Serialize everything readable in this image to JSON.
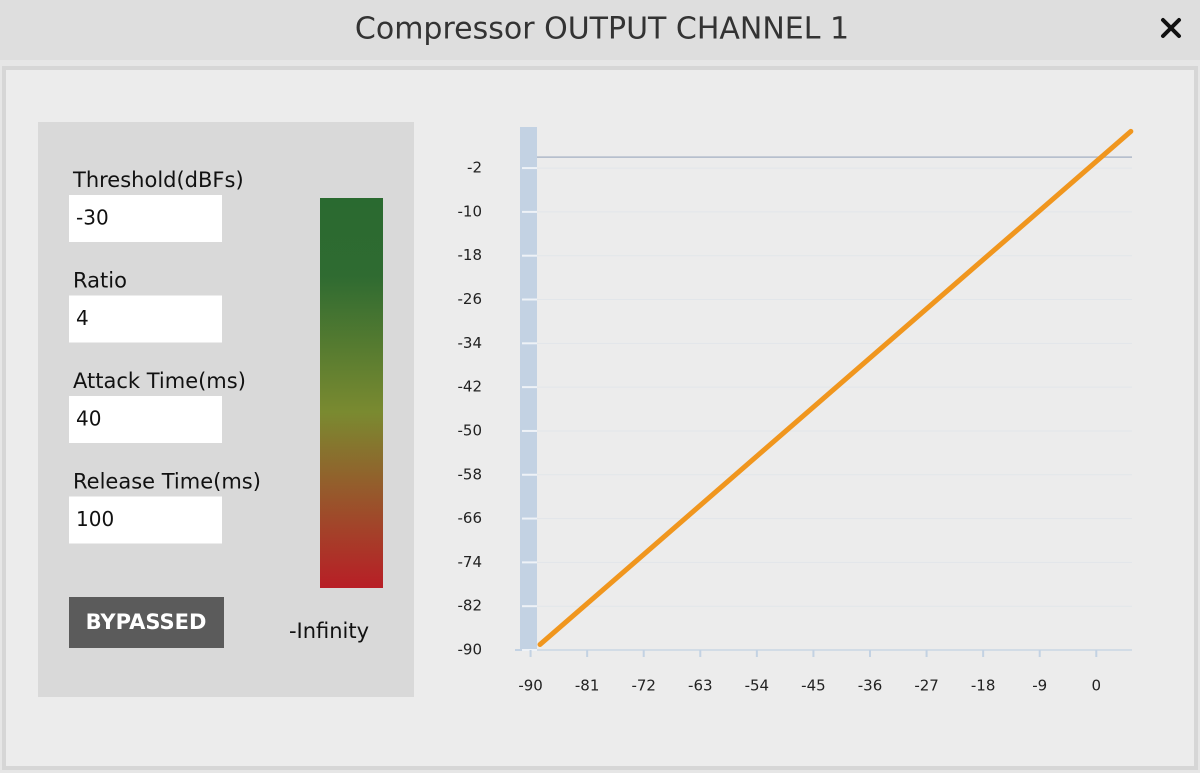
{
  "window": {
    "title": "Compressor OUTPUT CHANNEL 1"
  },
  "fields": [
    {
      "label": "Threshold(dBFs)",
      "value": -30
    },
    {
      "label": "Ratio",
      "value": 4
    },
    {
      "label": "Attack Time(ms)",
      "value": 40
    },
    {
      "label": "Release Time(ms)",
      "value": 100
    }
  ],
  "bypass_button": "BYPASSED",
  "meter": {
    "label": "-Infinity"
  },
  "chart_data": {
    "type": "line",
    "x": [
      -88.5,
      5.5
    ],
    "values": [
      -89,
      4.7
    ],
    "color": "#f0961e",
    "hline": 0,
    "xlim": [
      -92,
      6
    ],
    "ylim": [
      -90,
      5.5
    ],
    "xticks": [
      -90,
      -81,
      -72,
      -63,
      -54,
      -45,
      -36,
      -27,
      -18,
      -9,
      0
    ],
    "yticks": [
      -2,
      -10,
      -18,
      -26,
      -34,
      -42,
      -50,
      -58,
      -66,
      -74,
      -82,
      -90
    ],
    "grid": true
  }
}
